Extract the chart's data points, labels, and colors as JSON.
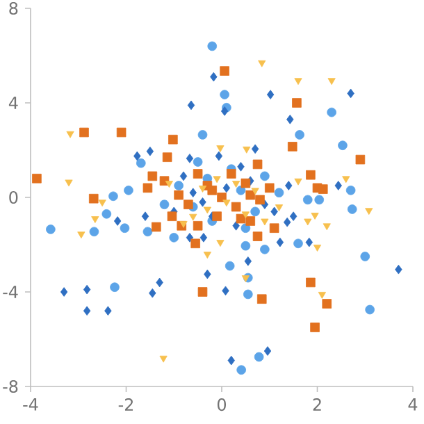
{
  "chart_data": {
    "type": "scatter",
    "xlim": [
      -4,
      4
    ],
    "ylim": [
      -8,
      8
    ],
    "xticks": [
      -4,
      -2,
      0,
      2,
      4
    ],
    "yticks": [
      -8,
      -4,
      0,
      4,
      8
    ],
    "grid": false,
    "series": [
      {
        "color": "#5ca4e8",
        "marker": "circle",
        "x": [
          -0.2,
          0.06,
          0.1,
          -0.4,
          2.3,
          1.63,
          2.53,
          2.7,
          -1.95,
          -2.27,
          -1.69,
          -3.58,
          -2.67,
          -2.41,
          -2.03,
          -1.55,
          -2.24,
          -1.0,
          2.73,
          3.0,
          3.1,
          1.6,
          0.5,
          0.17,
          0.55,
          0.55,
          0.78,
          0.41,
          0.9,
          1.8,
          2.04,
          0.44,
          -0.3,
          0.4,
          -0.6,
          0.7,
          0.2,
          -0.9,
          0.9,
          -0.2,
          1.2,
          -1.2,
          0.5,
          -0.5
        ],
        "values": [
          6.4,
          4.35,
          3.8,
          2.65,
          3.6,
          2.65,
          2.2,
          0.3,
          0.3,
          0.05,
          1.45,
          -1.35,
          -1.45,
          -0.7,
          -1.3,
          -1.45,
          -3.8,
          -1.7,
          -0.5,
          -2.5,
          -4.75,
          -1.95,
          -2.05,
          -2.9,
          -3.4,
          -4.1,
          -6.75,
          -7.3,
          -2.2,
          -0.1,
          -0.1,
          null,
          0.8,
          0.3,
          -0.4,
          -0.6,
          1.2,
          0.5,
          0.9,
          -1.0,
          0.2,
          -0.3,
          -1.3,
          1.5
        ]
      },
      {
        "color": "#2f6fc2",
        "marker": "diamond",
        "x": [
          -0.17,
          -0.64,
          -1.77,
          -1.5,
          -0.67,
          1.02,
          2.7,
          1.43,
          0.06,
          0.7,
          -0.06,
          2.44,
          -3.3,
          -2.82,
          -2.82,
          -2.38,
          -1.45,
          -1.3,
          -2.18,
          -1.6,
          -0.3,
          -0.67,
          -0.38,
          3.7,
          0.08,
          0.2,
          0.96,
          1.22,
          1.83,
          0.55,
          1.5,
          1.37,
          0.1,
          -0.4,
          0.6,
          -0.8,
          0.9,
          -0.2,
          0.3,
          1.1,
          -1.0,
          0.4,
          -0.6,
          1.4
        ],
        "values": [
          5.1,
          3.9,
          1.75,
          1.95,
          1.65,
          4.35,
          4.4,
          3.3,
          3.65,
          2.05,
          1.75,
          0.5,
          -4.0,
          -3.9,
          -4.8,
          -4.8,
          -4.05,
          -3.6,
          -1.0,
          -0.8,
          -3.25,
          -1.7,
          -1.7,
          -3.05,
          -3.95,
          -6.9,
          -6.5,
          -1.9,
          -1.9,
          -2.7,
          -0.8,
          -1.05,
          0.4,
          -0.2,
          0.7,
          0.9,
          -0.3,
          -0.8,
          -1.2,
          -0.6,
          -0.6,
          1.3,
          0.2,
          0.5
        ]
      },
      {
        "color": "#e2711f",
        "marker": "square",
        "x": [
          -3.87,
          -2.88,
          -2.1,
          -1.02,
          -1.14,
          -2.68,
          -1.2,
          -1.55,
          -1.45,
          0.06,
          1.57,
          1.48,
          2.9,
          0.75,
          1.86,
          2.0,
          2.12,
          -1.37,
          -0.84,
          -0.5,
          -0.55,
          -0.4,
          -1.04,
          1.86,
          2.2,
          1.95,
          0.84,
          1.1,
          0.75,
          0.6,
          0,
          -0.3,
          0.3,
          0.5,
          -0.7,
          0.8,
          -0.1,
          0.2,
          -0.5,
          1.0,
          -0.9,
          0.4,
          -0.2,
          0.6
        ],
        "values": [
          0.8,
          2.75,
          2.75,
          2.45,
          1.7,
          -0.05,
          0.7,
          0.4,
          0.9,
          5.35,
          4.0,
          2.15,
          1.6,
          1.4,
          0.95,
          0.4,
          0.35,
          -1.25,
          -1.2,
          -1.2,
          -1.95,
          -4.0,
          -0.8,
          -3.6,
          -4.5,
          -5.5,
          -4.3,
          -1.3,
          -1.65,
          -1.0,
          0,
          0.5,
          -0.4,
          0.6,
          -0.3,
          -0.1,
          -0.8,
          1.0,
          1.0,
          0.4,
          0.1,
          -0.9,
          0.3,
          0.1
        ]
      },
      {
        "color": "#f7c04e",
        "marker": "triangle",
        "x": [
          -3.17,
          -3.2,
          -2.5,
          0.84,
          1.6,
          2.3,
          0.52,
          -0.03,
          2.6,
          1.6,
          -2.65,
          -2.94,
          -1.22,
          -0.3,
          3.08,
          2.1,
          2.0,
          2.2,
          1.8,
          1.95,
          0.5,
          -0.03,
          0.1,
          -0.4,
          0.5,
          -0.6,
          0.7,
          -0.1,
          0.9,
          -1.1,
          0.3,
          -0.8,
          1.2,
          -0.3
        ],
        "values": [
          2.7,
          0.65,
          -0.2,
          5.7,
          4.95,
          4.95,
          2.05,
          2.1,
          0.8,
          0.7,
          -0.9,
          -1.55,
          -6.8,
          -2.4,
          -0.55,
          -4.1,
          -2.1,
          -1.2,
          -1.0,
          -0.75,
          -3.4,
          -1.9,
          -0.2,
          0.4,
          -0.7,
          -0.8,
          0.3,
          0.8,
          -1.0,
          0.6,
          0.6,
          -1.1,
          -0.4,
          -0.5
        ]
      }
    ]
  }
}
